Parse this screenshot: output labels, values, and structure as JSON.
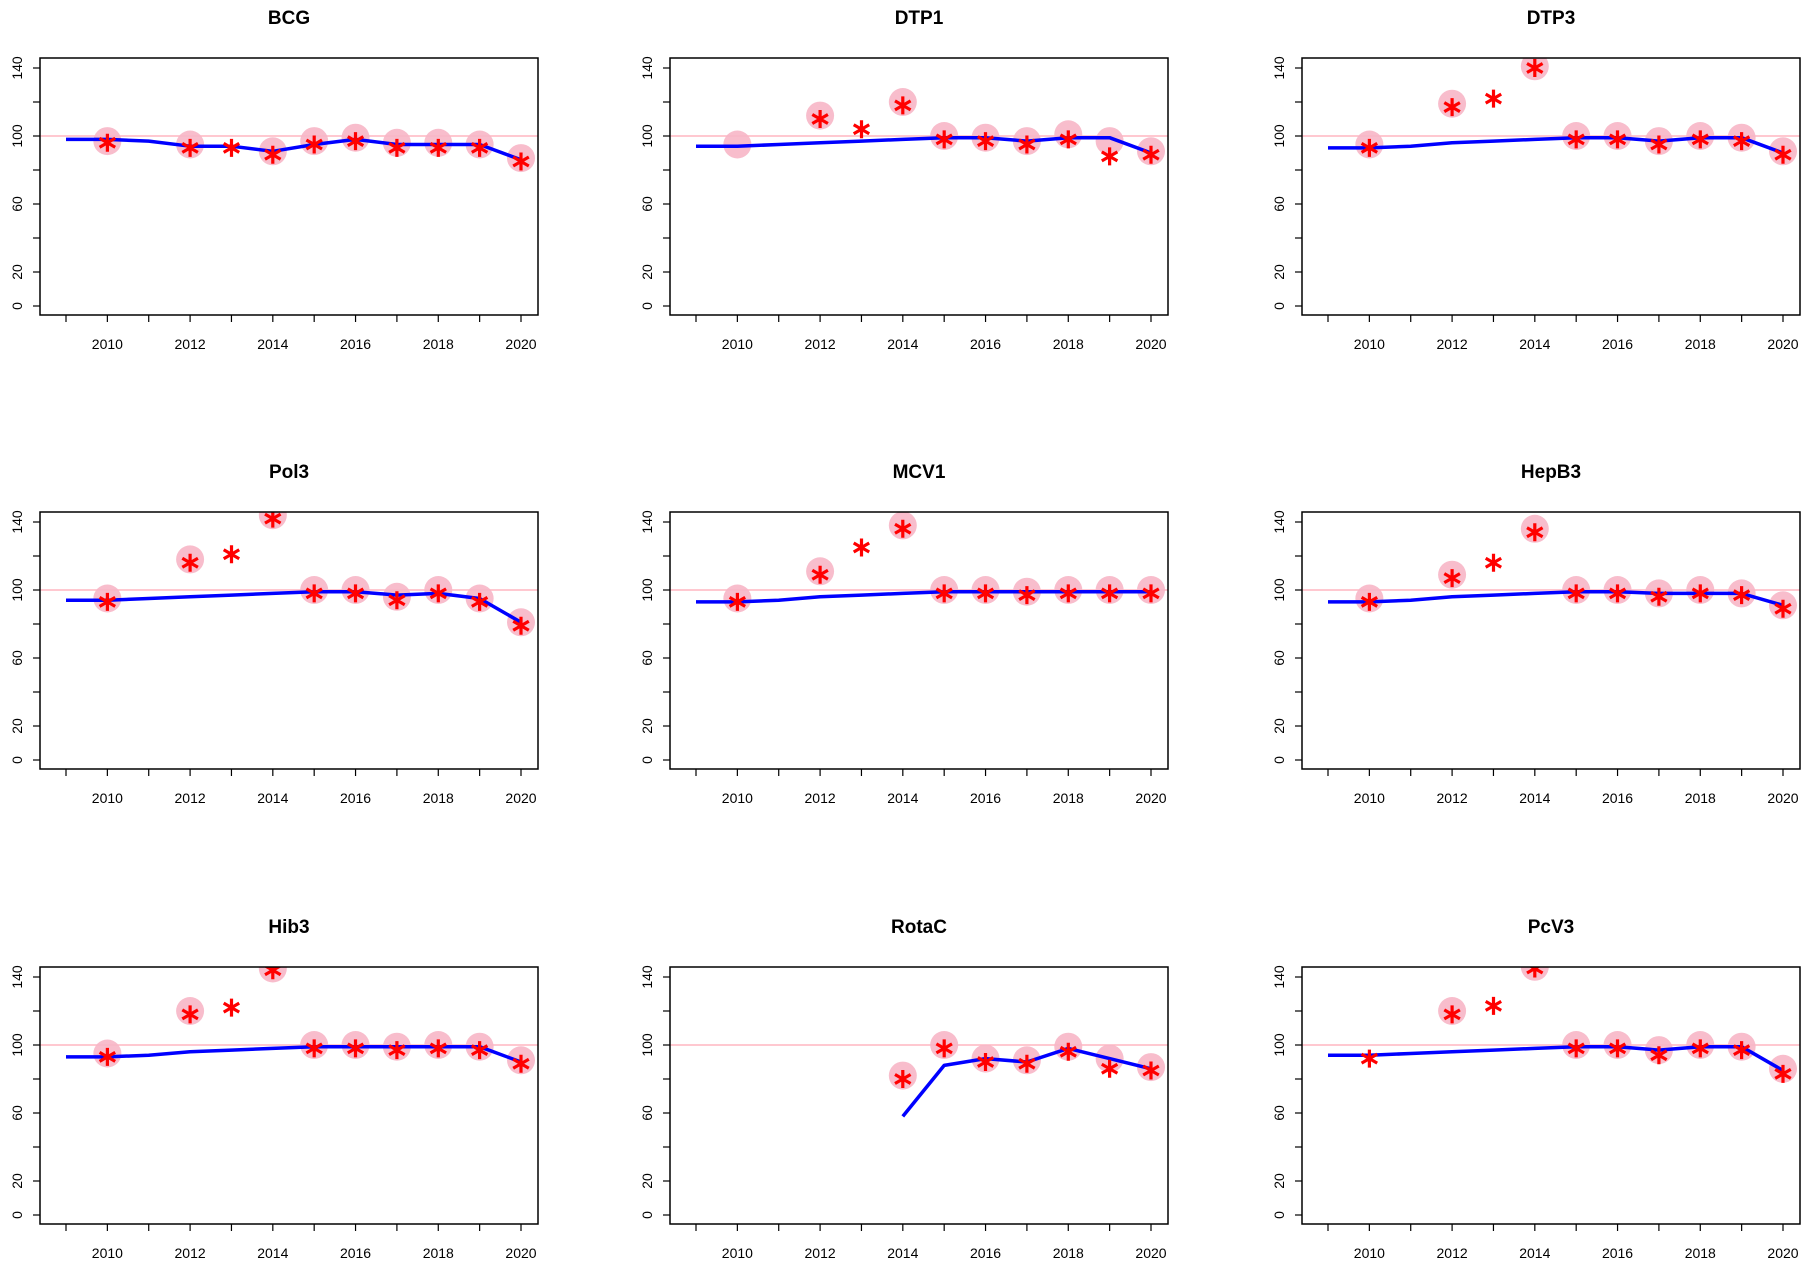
{
  "chart_data": [
    {
      "type": "line",
      "title": "BCG",
      "xlim": [
        2009,
        2020
      ],
      "ylim": [
        0,
        140
      ],
      "x_ticks": [
        "2010",
        "2012",
        "2014",
        "2016",
        "2018",
        "2020"
      ],
      "y_ticks": [
        "0",
        "20",
        "60",
        "100",
        "140"
      ],
      "reference_line": 100,
      "series": [
        {
          "kind": "line",
          "x": [
            2009,
            2010,
            2011,
            2012,
            2013,
            2014,
            2015,
            2016,
            2017,
            2018,
            2019,
            2020
          ],
          "y": [
            98,
            98,
            97,
            94,
            94,
            91,
            95,
            98,
            95,
            95,
            95,
            86
          ]
        },
        {
          "kind": "star",
          "x": [
            2010,
            2012,
            2013,
            2014,
            2015,
            2016,
            2017,
            2018,
            2019,
            2020
          ],
          "y": [
            96,
            93,
            93,
            89,
            95,
            97,
            93,
            93,
            93,
            85
          ]
        },
        {
          "kind": "circle",
          "x": [
            2010,
            2012,
            2014,
            2015,
            2016,
            2017,
            2018,
            2019,
            2020
          ],
          "y": [
            97,
            95,
            91,
            97,
            99,
            96,
            96,
            95,
            87
          ]
        }
      ]
    },
    {
      "type": "line",
      "title": "DTP1",
      "xlim": [
        2009,
        2020
      ],
      "ylim": [
        0,
        140
      ],
      "x_ticks": [
        "2010",
        "2012",
        "2014",
        "2016",
        "2018",
        "2020"
      ],
      "y_ticks": [
        "0",
        "20",
        "60",
        "100",
        "140"
      ],
      "reference_line": 100,
      "series": [
        {
          "kind": "line",
          "x": [
            2009,
            2010,
            2011,
            2012,
            2013,
            2014,
            2015,
            2016,
            2017,
            2018,
            2019,
            2020
          ],
          "y": [
            94,
            94,
            95,
            96,
            97,
            98,
            99,
            99,
            97,
            99,
            99,
            90
          ]
        },
        {
          "kind": "star",
          "x": [
            2012,
            2013,
            2014,
            2015,
            2016,
            2017,
            2018,
            2019,
            2020
          ],
          "y": [
            110,
            104,
            118,
            98,
            97,
            95,
            98,
            88,
            89
          ]
        },
        {
          "kind": "circle",
          "x": [
            2010,
            2012,
            2014,
            2015,
            2016,
            2017,
            2018,
            2019,
            2020
          ],
          "y": [
            95,
            112,
            120,
            100,
            99,
            97,
            101,
            97,
            91
          ]
        }
      ]
    },
    {
      "type": "line",
      "title": "DTP3",
      "xlim": [
        2009,
        2020
      ],
      "ylim": [
        0,
        140
      ],
      "x_ticks": [
        "2010",
        "2012",
        "2014",
        "2016",
        "2018",
        "2020"
      ],
      "y_ticks": [
        "0",
        "20",
        "60",
        "100",
        "140"
      ],
      "reference_line": 100,
      "series": [
        {
          "kind": "line",
          "x": [
            2009,
            2010,
            2011,
            2012,
            2013,
            2014,
            2015,
            2016,
            2017,
            2018,
            2019,
            2020
          ],
          "y": [
            93,
            93,
            94,
            96,
            97,
            98,
            99,
            99,
            97,
            99,
            99,
            90
          ]
        },
        {
          "kind": "star",
          "x": [
            2010,
            2012,
            2013,
            2014,
            2015,
            2016,
            2017,
            2018,
            2019,
            2020
          ],
          "y": [
            93,
            117,
            122,
            140,
            98,
            98,
            95,
            98,
            97,
            89
          ]
        },
        {
          "kind": "circle",
          "x": [
            2010,
            2012,
            2014,
            2015,
            2016,
            2017,
            2018,
            2019,
            2020
          ],
          "y": [
            95,
            119,
            141,
            100,
            100,
            97,
            100,
            99,
            91
          ]
        }
      ]
    },
    {
      "type": "line",
      "title": "Pol3",
      "xlim": [
        2009,
        2020
      ],
      "ylim": [
        0,
        140
      ],
      "x_ticks": [
        "2010",
        "2012",
        "2014",
        "2016",
        "2018",
        "2020"
      ],
      "y_ticks": [
        "0",
        "20",
        "60",
        "100",
        "140"
      ],
      "reference_line": 100,
      "series": [
        {
          "kind": "line",
          "x": [
            2009,
            2010,
            2011,
            2012,
            2013,
            2014,
            2015,
            2016,
            2017,
            2018,
            2019,
            2020
          ],
          "y": [
            94,
            94,
            95,
            96,
            97,
            98,
            99,
            99,
            97,
            98,
            95,
            81
          ]
        },
        {
          "kind": "star",
          "x": [
            2010,
            2012,
            2013,
            2014,
            2015,
            2016,
            2017,
            2018,
            2019,
            2020
          ],
          "y": [
            93,
            116,
            121,
            142,
            98,
            98,
            94,
            98,
            93,
            79
          ]
        },
        {
          "kind": "circle",
          "x": [
            2010,
            2012,
            2014,
            2015,
            2016,
            2017,
            2018,
            2019,
            2020
          ],
          "y": [
            95,
            118,
            144,
            100,
            100,
            96,
            100,
            95,
            81
          ]
        }
      ]
    },
    {
      "type": "line",
      "title": "MCV1",
      "xlim": [
        2009,
        2020
      ],
      "ylim": [
        0,
        140
      ],
      "x_ticks": [
        "2010",
        "2012",
        "2014",
        "2016",
        "2018",
        "2020"
      ],
      "y_ticks": [
        "0",
        "20",
        "60",
        "100",
        "140"
      ],
      "reference_line": 100,
      "series": [
        {
          "kind": "line",
          "x": [
            2009,
            2010,
            2011,
            2012,
            2013,
            2014,
            2015,
            2016,
            2017,
            2018,
            2019,
            2020
          ],
          "y": [
            93,
            93,
            94,
            96,
            97,
            98,
            99,
            99,
            99,
            99,
            99,
            99
          ]
        },
        {
          "kind": "star",
          "x": [
            2010,
            2012,
            2013,
            2014,
            2015,
            2016,
            2017,
            2018,
            2019,
            2020
          ],
          "y": [
            93,
            109,
            125,
            136,
            98,
            98,
            97,
            98,
            98,
            98
          ]
        },
        {
          "kind": "circle",
          "x": [
            2010,
            2012,
            2014,
            2015,
            2016,
            2017,
            2018,
            2019,
            2020
          ],
          "y": [
            95,
            111,
            138,
            100,
            100,
            99,
            100,
            100,
            100
          ]
        }
      ]
    },
    {
      "type": "line",
      "title": "HepB3",
      "xlim": [
        2009,
        2020
      ],
      "ylim": [
        0,
        140
      ],
      "x_ticks": [
        "2010",
        "2012",
        "2014",
        "2016",
        "2018",
        "2020"
      ],
      "y_ticks": [
        "0",
        "20",
        "60",
        "100",
        "140"
      ],
      "reference_line": 100,
      "series": [
        {
          "kind": "line",
          "x": [
            2009,
            2010,
            2011,
            2012,
            2013,
            2014,
            2015,
            2016,
            2017,
            2018,
            2019,
            2020
          ],
          "y": [
            93,
            93,
            94,
            96,
            97,
            98,
            99,
            99,
            98,
            98,
            98,
            91
          ]
        },
        {
          "kind": "star",
          "x": [
            2010,
            2012,
            2013,
            2014,
            2015,
            2016,
            2017,
            2018,
            2019,
            2020
          ],
          "y": [
            93,
            107,
            116,
            134,
            98,
            98,
            96,
            98,
            97,
            89
          ]
        },
        {
          "kind": "circle",
          "x": [
            2010,
            2012,
            2014,
            2015,
            2016,
            2017,
            2018,
            2019,
            2020
          ],
          "y": [
            95,
            109,
            136,
            100,
            100,
            98,
            100,
            98,
            91
          ]
        }
      ]
    },
    {
      "type": "line",
      "title": "Hib3",
      "xlim": [
        2009,
        2020
      ],
      "ylim": [
        0,
        140
      ],
      "x_ticks": [
        "2010",
        "2012",
        "2014",
        "2016",
        "2018",
        "2020"
      ],
      "y_ticks": [
        "0",
        "20",
        "60",
        "100",
        "140"
      ],
      "reference_line": 100,
      "series": [
        {
          "kind": "line",
          "x": [
            2009,
            2010,
            2011,
            2012,
            2013,
            2014,
            2015,
            2016,
            2017,
            2018,
            2019,
            2020
          ],
          "y": [
            93,
            93,
            94,
            96,
            97,
            98,
            99,
            99,
            99,
            99,
            99,
            90
          ]
        },
        {
          "kind": "star",
          "x": [
            2010,
            2012,
            2013,
            2014,
            2015,
            2016,
            2017,
            2018,
            2019,
            2020
          ],
          "y": [
            93,
            118,
            122,
            144,
            98,
            98,
            97,
            98,
            97,
            89
          ]
        },
        {
          "kind": "circle",
          "x": [
            2010,
            2012,
            2014,
            2015,
            2016,
            2017,
            2018,
            2019,
            2020
          ],
          "y": [
            95,
            120,
            145,
            100,
            100,
            99,
            100,
            99,
            91
          ]
        }
      ]
    },
    {
      "type": "line",
      "title": "RotaC",
      "xlim": [
        2009,
        2020
      ],
      "ylim": [
        0,
        140
      ],
      "x_ticks": [
        "2010",
        "2012",
        "2014",
        "2016",
        "2018",
        "2020"
      ],
      "y_ticks": [
        "0",
        "20",
        "60",
        "100",
        "140"
      ],
      "reference_line": 100,
      "series": [
        {
          "kind": "line",
          "x": [
            2014,
            2015,
            2016,
            2017,
            2018,
            2019,
            2020
          ],
          "y": [
            58,
            88,
            92,
            90,
            98,
            92,
            86
          ]
        },
        {
          "kind": "star",
          "x": [
            2014,
            2015,
            2016,
            2017,
            2018,
            2019,
            2020
          ],
          "y": [
            80,
            98,
            90,
            89,
            96,
            86,
            85
          ]
        },
        {
          "kind": "circle",
          "x": [
            2014,
            2015,
            2016,
            2017,
            2018,
            2019,
            2020
          ],
          "y": [
            82,
            100,
            92,
            91,
            99,
            92,
            87
          ]
        }
      ]
    },
    {
      "type": "line",
      "title": "PcV3",
      "xlim": [
        2009,
        2020
      ],
      "ylim": [
        0,
        140
      ],
      "x_ticks": [
        "2010",
        "2012",
        "2014",
        "2016",
        "2018",
        "2020"
      ],
      "y_ticks": [
        "0",
        "20",
        "60",
        "100",
        "140"
      ],
      "reference_line": 100,
      "series": [
        {
          "kind": "line",
          "x": [
            2009,
            2010,
            2011,
            2012,
            2013,
            2014,
            2015,
            2016,
            2017,
            2018,
            2019,
            2020
          ],
          "y": [
            94,
            94,
            95,
            96,
            97,
            98,
            99,
            99,
            97,
            99,
            99,
            85
          ]
        },
        {
          "kind": "star",
          "x": [
            2010,
            2012,
            2013,
            2014,
            2015,
            2016,
            2017,
            2018,
            2019,
            2020
          ],
          "y": [
            92,
            118,
            123,
            145,
            98,
            98,
            94,
            98,
            97,
            83
          ]
        },
        {
          "kind": "circle",
          "x": [
            2012,
            2014,
            2015,
            2016,
            2017,
            2018,
            2019,
            2020
          ],
          "y": [
            120,
            146,
            100,
            100,
            97,
            100,
            99,
            86
          ]
        }
      ]
    }
  ],
  "colors": {
    "line": "#0000ff",
    "star": "#ff0000",
    "circle": "#f7b6c7",
    "reference": "#ffb6c1",
    "axis": "#000000"
  }
}
